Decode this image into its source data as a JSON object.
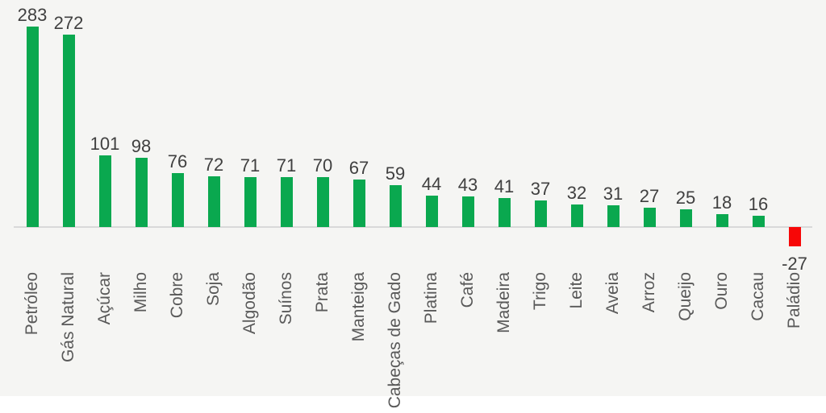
{
  "chart_data": {
    "type": "bar",
    "title": "",
    "xlabel": "",
    "ylabel": "",
    "categories": [
      "Petróleo",
      "Gás Natural",
      "Açúcar",
      "Milho",
      "Cobre",
      "Soja",
      "Algodão",
      "Suínos",
      "Prata",
      "Manteiga",
      "Cabeças de Gado",
      "Platina",
      "Café",
      "Madeira",
      "Trigo",
      "Leite",
      "Aveia",
      "Arroz",
      "Queijo",
      "Ouro",
      "Cacau",
      "Paládio"
    ],
    "values": [
      283,
      272,
      101,
      98,
      76,
      72,
      71,
      71,
      70,
      67,
      59,
      44,
      43,
      41,
      37,
      32,
      31,
      27,
      25,
      18,
      16,
      -27
    ],
    "data_labels_shown": true,
    "ylim": [
      -50,
      300
    ],
    "grid": false,
    "legend": null,
    "baseline_value": 0,
    "colors": {
      "positive_bar": "#0aa84f",
      "negative_bar": "#f70707",
      "value_label": "#404040",
      "category_label": "#595959",
      "axis_line": "#d9d9d9",
      "background": "#f5f5f3"
    }
  }
}
